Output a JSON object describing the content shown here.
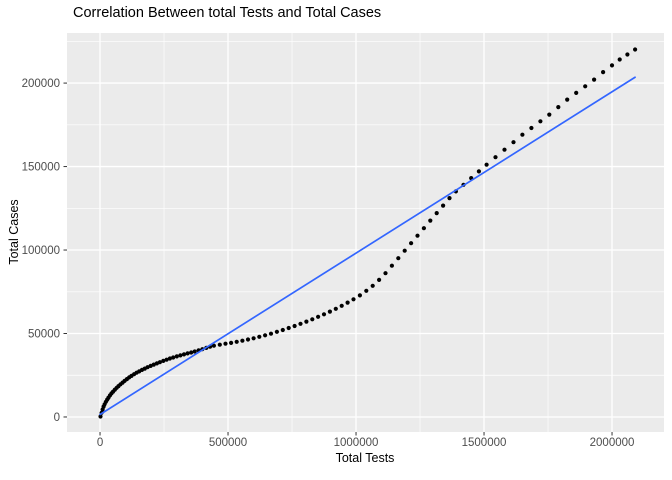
{
  "title": "Correlation Between total Tests and Total Cases",
  "chart_data": {
    "type": "scatter",
    "title": "Correlation Between total Tests and Total Cases",
    "xlabel": "Total Tests",
    "ylabel": "Total Cases",
    "xlim": [
      -129000,
      2203000
    ],
    "ylim": [
      -9000,
      230000
    ],
    "x_ticks": [
      0,
      500000,
      1000000,
      1500000,
      2000000
    ],
    "x_tick_labels": [
      "0",
      "500000",
      "1000000",
      "1500000",
      "2000000"
    ],
    "y_ticks": [
      0,
      50000,
      100000,
      150000,
      200000
    ],
    "y_tick_labels": [
      "0",
      "50000",
      "100000",
      "150000",
      "200000"
    ],
    "x_minor_ticks": [
      250000,
      750000,
      1250000,
      1750000
    ],
    "y_minor_ticks": [
      25000,
      75000,
      125000,
      175000,
      225000
    ],
    "grid": true,
    "legend": "none",
    "colors": {
      "panel_background": "#EBEBEB",
      "grid_major": "#FFFFFF",
      "grid_minor": "#FFFFFF",
      "point": "#000000",
      "regression_line": "#3366FF",
      "tick_label": "#4D4D4D",
      "tick_mark": "#333333",
      "title_text": "#000000"
    },
    "series": [
      {
        "name": "observations",
        "type": "points",
        "points": [
          [
            2000,
            300
          ],
          [
            6000,
            2500
          ],
          [
            10000,
            4500
          ],
          [
            14000,
            6200
          ],
          [
            18000,
            7600
          ],
          [
            23000,
            9100
          ],
          [
            28000,
            10400
          ],
          [
            33000,
            11600
          ],
          [
            39000,
            12900
          ],
          [
            45000,
            14100
          ],
          [
            51000,
            15200
          ],
          [
            58000,
            16400
          ],
          [
            65000,
            17500
          ],
          [
            72000,
            18500
          ],
          [
            80000,
            19600
          ],
          [
            88000,
            20600
          ],
          [
            96000,
            21600
          ],
          [
            105000,
            22700
          ],
          [
            114000,
            23700
          ],
          [
            123000,
            24600
          ],
          [
            133000,
            25600
          ],
          [
            143000,
            26500
          ],
          [
            153000,
            27300
          ],
          [
            164000,
            28200
          ],
          [
            175000,
            29000
          ],
          [
            186000,
            29800
          ],
          [
            198000,
            30600
          ],
          [
            210000,
            31400
          ],
          [
            222000,
            32100
          ],
          [
            234000,
            32800
          ],
          [
            247000,
            33600
          ],
          [
            260000,
            34300
          ],
          [
            273000,
            35000
          ],
          [
            286000,
            35600
          ],
          [
            300000,
            36300
          ],
          [
            314000,
            36900
          ],
          [
            328000,
            37500
          ],
          [
            342000,
            38100
          ],
          [
            356000,
            38600
          ],
          [
            370000,
            39200
          ],
          [
            385000,
            39900
          ],
          [
            400000,
            40600
          ],
          [
            415000,
            41400
          ],
          [
            430000,
            42100
          ],
          [
            445000,
            42700
          ],
          [
            468000,
            43300
          ],
          [
            490000,
            43900
          ],
          [
            512000,
            44400
          ],
          [
            534000,
            45000
          ],
          [
            556000,
            45700
          ],
          [
            578000,
            46400
          ],
          [
            600000,
            47100
          ],
          [
            622000,
            48000
          ],
          [
            645000,
            48900
          ],
          [
            668000,
            49900
          ],
          [
            691000,
            51000
          ],
          [
            714000,
            52100
          ],
          [
            737000,
            53300
          ],
          [
            760000,
            54500
          ],
          [
            783000,
            55800
          ],
          [
            806000,
            57100
          ],
          [
            829000,
            58500
          ],
          [
            852000,
            60000
          ],
          [
            875000,
            61500
          ],
          [
            898000,
            63100
          ],
          [
            921000,
            64800
          ],
          [
            944000,
            66600
          ],
          [
            967000,
            68500
          ],
          [
            990000,
            70500
          ],
          [
            1015000,
            72800
          ],
          [
            1040000,
            75600
          ],
          [
            1065000,
            78600
          ],
          [
            1090000,
            82100
          ],
          [
            1115000,
            86100
          ],
          [
            1140000,
            90600
          ],
          [
            1165000,
            95100
          ],
          [
            1190000,
            99600
          ],
          [
            1215000,
            104100
          ],
          [
            1240000,
            108600
          ],
          [
            1265000,
            113100
          ],
          [
            1290000,
            117600
          ],
          [
            1315000,
            122100
          ],
          [
            1340000,
            126600
          ],
          [
            1365000,
            131100
          ],
          [
            1390000,
            135100
          ],
          [
            1420000,
            139100
          ],
          [
            1450000,
            143100
          ],
          [
            1480000,
            147100
          ],
          [
            1510000,
            151100
          ],
          [
            1545000,
            155600
          ],
          [
            1580000,
            160100
          ],
          [
            1615000,
            164600
          ],
          [
            1650000,
            169100
          ],
          [
            1685000,
            173100
          ],
          [
            1720000,
            177100
          ],
          [
            1755000,
            181100
          ],
          [
            1790000,
            185600
          ],
          [
            1825000,
            190100
          ],
          [
            1860000,
            194100
          ],
          [
            1895000,
            198100
          ],
          [
            1930000,
            202100
          ],
          [
            1965000,
            206600
          ],
          [
            2000000,
            210600
          ],
          [
            2030000,
            214100
          ],
          [
            2060000,
            217100
          ],
          [
            2090000,
            220100
          ]
        ]
      },
      {
        "name": "linear-fit",
        "type": "line",
        "points": [
          [
            0,
            1500
          ],
          [
            2090000,
            203500
          ]
        ]
      }
    ]
  }
}
